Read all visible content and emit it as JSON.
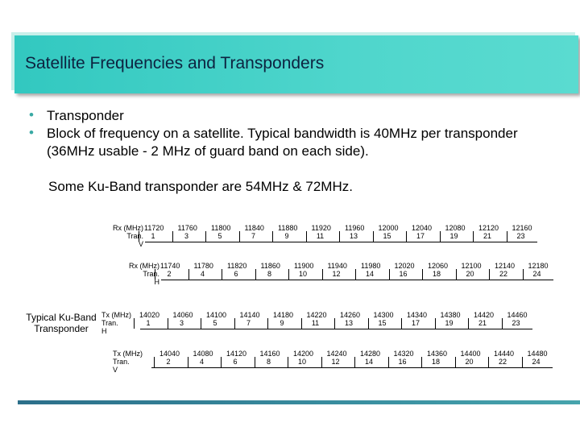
{
  "title": "Satellite Frequencies and Transponders",
  "bullets": [
    "Transponder",
    "Block of frequency on a satellite. Typical bandwidth is 40MHz per transponder (36MHz usable - 2 MHz of  guard band on each side)."
  ],
  "extra_line": "Some Ku-Band transponder are 54MHz & 72MHz.",
  "side_label": "Typical Ku-Band Transponder",
  "rows": [
    {
      "label_lines": [
        "Rx (MHz)",
        "Tran.",
        "V"
      ],
      "freqs": [
        "11720",
        "11760",
        "11800",
        "11840",
        "11880",
        "11920",
        "11960",
        "12000",
        "12040",
        "12080",
        "12120",
        "12160"
      ],
      "trans": [
        "1",
        "3",
        "5",
        "7",
        "9",
        "11",
        "13",
        "15",
        "17",
        "19",
        "21",
        "23"
      ]
    },
    {
      "label_lines": [
        "Rx (MHz)",
        "Tran.",
        "H"
      ],
      "freqs": [
        "11740",
        "11780",
        "11820",
        "11860",
        "11900",
        "11940",
        "11980",
        "12020",
        "12060",
        "12100",
        "12140",
        "12180"
      ],
      "trans": [
        "2",
        "4",
        "6",
        "8",
        "10",
        "12",
        "14",
        "16",
        "18",
        "20",
        "22",
        "24"
      ]
    },
    {
      "label_lines": [
        "Tx (MHz)",
        "Tran.",
        "H"
      ],
      "freqs": [
        "14020",
        "14060",
        "14100",
        "14140",
        "14180",
        "14220",
        "14260",
        "14300",
        "14340",
        "14380",
        "14420",
        "14460"
      ],
      "trans": [
        "1",
        "3",
        "5",
        "7",
        "9",
        "11",
        "13",
        "15",
        "17",
        "19",
        "21",
        "23"
      ]
    },
    {
      "label_lines": [
        "Tx (MHz)",
        "Tran.",
        "V"
      ],
      "freqs": [
        "14040",
        "14080",
        "14120",
        "14160",
        "14200",
        "14240",
        "14280",
        "14320",
        "14360",
        "14400",
        "14440",
        "14480"
      ],
      "trans": [
        "2",
        "4",
        "6",
        "8",
        "10",
        "12",
        "14",
        "16",
        "18",
        "20",
        "22",
        "24"
      ]
    }
  ],
  "colors": {
    "title_bar": "#40cfc6",
    "title_text": "#0d2340",
    "bullet": "#39a9a4",
    "bottom_line": "#2c6f8a"
  }
}
